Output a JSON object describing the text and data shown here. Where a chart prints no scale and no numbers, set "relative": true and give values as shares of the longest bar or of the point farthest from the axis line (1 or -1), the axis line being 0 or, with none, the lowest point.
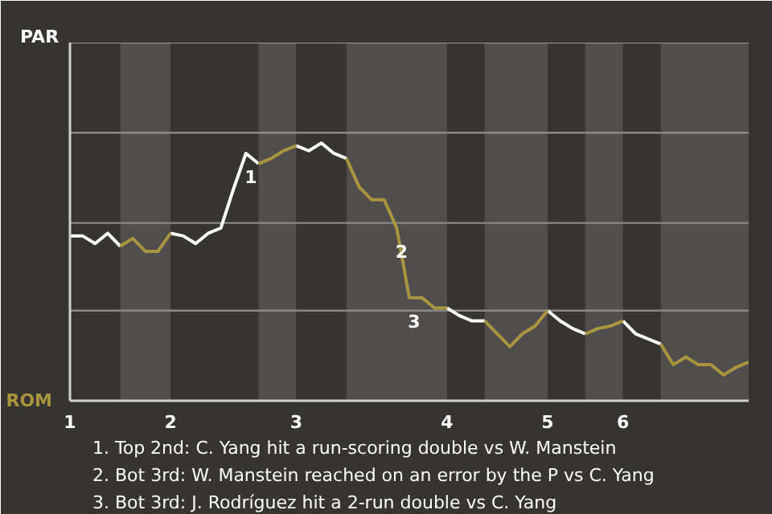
{
  "chart_data": {
    "type": "line",
    "relative": true,
    "categories": [
      "1",
      null,
      null,
      null,
      null,
      null,
      null,
      null,
      "2",
      null,
      null,
      null,
      null,
      null,
      null,
      null,
      null,
      null,
      "3",
      null,
      null,
      null,
      null,
      null,
      null,
      null,
      null,
      null,
      null,
      null,
      "4",
      null,
      null,
      null,
      null,
      null,
      null,
      null,
      "5",
      null,
      null,
      null,
      null,
      null,
      "6",
      null,
      null,
      null,
      null,
      null,
      null,
      null,
      null,
      null,
      null
    ],
    "series": [
      {
        "name": "PAR",
        "color": "#ffffff",
        "values": [
          0.64,
          0.64,
          0.61,
          0.65,
          0.6,
          null,
          null,
          null,
          0.65,
          0.64,
          0.61,
          0.65,
          0.67,
          0.82,
          0.96,
          0.92,
          null,
          null,
          0.99,
          0.97,
          1.0,
          0.96,
          0.94,
          null,
          null,
          null,
          null,
          null,
          null,
          null,
          0.36,
          0.33,
          0.31,
          0.31,
          null,
          null,
          null,
          null,
          0.35,
          0.31,
          0.28,
          0.26,
          null,
          null,
          0.31,
          0.26,
          0.24,
          0.22,
          null,
          null,
          null,
          null,
          null,
          null,
          null
        ]
      },
      {
        "name": "ROM",
        "color": "#a89540",
        "values": [
          null,
          null,
          null,
          null,
          0.6,
          0.63,
          0.58,
          0.58,
          0.65,
          null,
          null,
          null,
          null,
          null,
          null,
          0.92,
          0.94,
          0.97,
          0.99,
          null,
          null,
          null,
          0.94,
          0.83,
          0.78,
          0.78,
          0.67,
          0.4,
          0.4,
          0.36,
          0.36,
          null,
          null,
          0.31,
          0.26,
          0.21,
          0.26,
          0.29,
          0.35,
          null,
          null,
          0.26,
          0.28,
          0.29,
          0.31,
          null,
          null,
          0.22,
          0.14,
          0.17,
          0.14,
          0.14,
          0.1,
          0.13,
          0.15
        ]
      }
    ],
    "ref_lines": [
      {
        "axis": "y",
        "value": 0.35,
        "color": "#8a8886"
      },
      {
        "axis": "y",
        "value": 0.69,
        "color": "#8a8886"
      },
      {
        "axis": "y",
        "value": 1.04,
        "color": "#8a8886"
      },
      {
        "axis": "y",
        "value": 1.39,
        "color": "#8a8886"
      }
    ],
    "annotations": [
      {
        "text": "1",
        "y": 0.96
      },
      {
        "text": "2",
        "y": 0.67
      },
      {
        "text": "3",
        "y": 0.4
      },
      "1. Top 2nd: C. Yang hit a run-scoring double vs W. Manstein",
      "2. Bot 3rd: W. Manstein reached on an error by the P vs C. Yang",
      "3. Bot 3rd: J. Rodríguez hit a 2-run double vs C. Yang"
    ]
  }
}
